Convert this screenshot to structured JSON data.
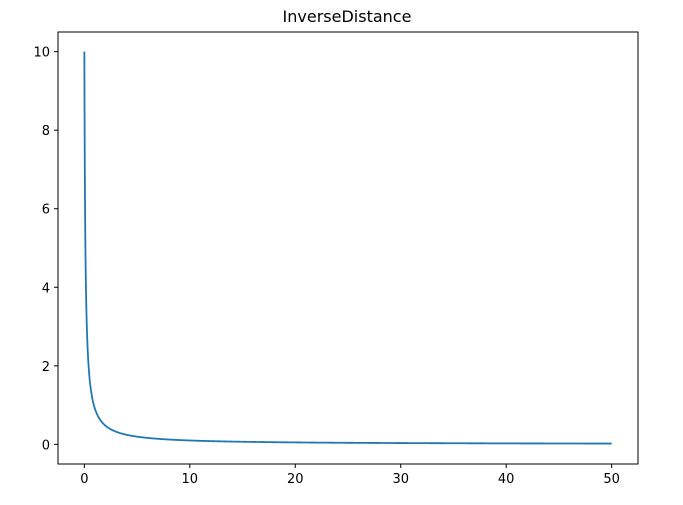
{
  "chart_data": {
    "type": "line",
    "title": "InverseDistance",
    "xlabel": "",
    "ylabel": "",
    "xlim": [
      -2.5,
      52.5
    ],
    "ylim": [
      -0.5,
      10.5
    ],
    "x_ticks": [
      0,
      10,
      20,
      30,
      40,
      50
    ],
    "y_ticks": [
      0,
      2,
      4,
      6,
      8,
      10
    ],
    "grid": false,
    "series": [
      {
        "color": "#1f77b4",
        "function": "y = 1 / (x + 0.1)",
        "x_range": [
          0,
          50
        ],
        "samples": [
          {
            "x": 0,
            "y": 10
          },
          {
            "x": 0.5,
            "y": 1.67
          },
          {
            "x": 1,
            "y": 0.91
          },
          {
            "x": 2,
            "y": 0.48
          },
          {
            "x": 5,
            "y": 0.2
          },
          {
            "x": 10,
            "y": 0.1
          },
          {
            "x": 20,
            "y": 0.05
          },
          {
            "x": 30,
            "y": 0.033
          },
          {
            "x": 40,
            "y": 0.025
          },
          {
            "x": 50,
            "y": 0.02
          }
        ]
      }
    ]
  }
}
